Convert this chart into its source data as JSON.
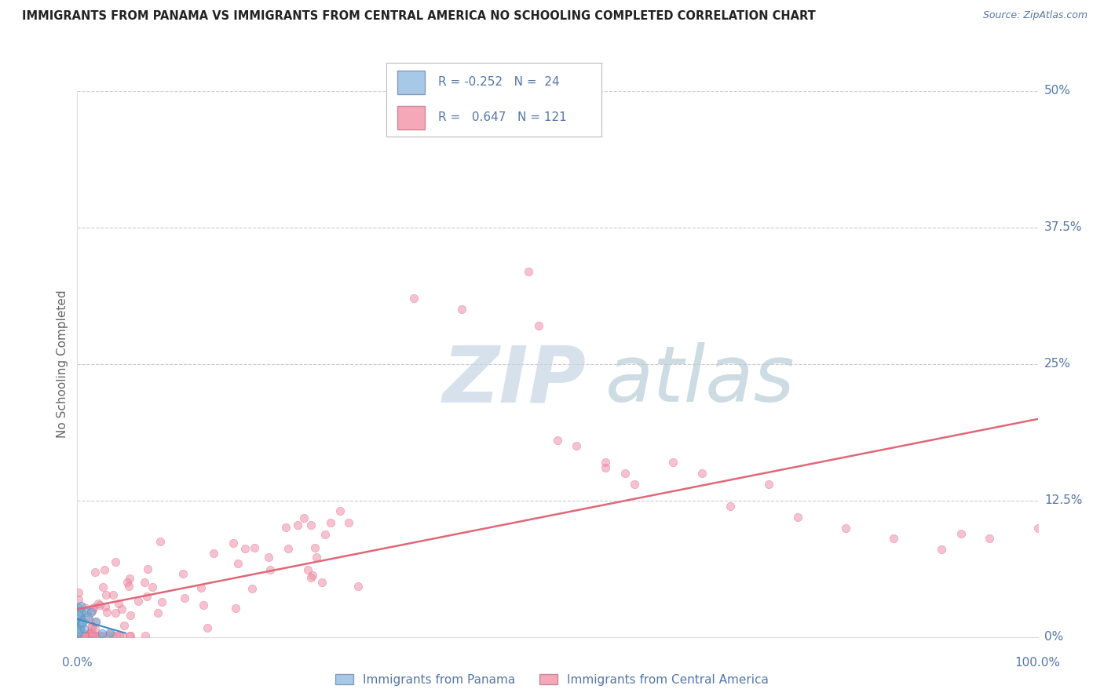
{
  "title": "IMMIGRANTS FROM PANAMA VS IMMIGRANTS FROM CENTRAL AMERICA NO SCHOOLING COMPLETED CORRELATION CHART",
  "source": "Source: ZipAtlas.com",
  "ylabel": "No Schooling Completed",
  "watermark_zip": "ZIP",
  "watermark_atlas": "atlas",
  "legend_entries": [
    {
      "label": "Immigrants from Panama",
      "R": "-0.252",
      "N": "24",
      "color": "#a8c8e8"
    },
    {
      "label": "Immigrants from Central America",
      "R": "0.647",
      "N": "121",
      "color": "#f4a8b8"
    }
  ],
  "xlim": [
    0.0,
    1.0
  ],
  "ylim": [
    0.0,
    0.5
  ],
  "yticks": [
    0.0,
    0.125,
    0.25,
    0.375,
    0.5
  ],
  "ytick_labels": [
    "0%",
    "12.5%",
    "25%",
    "37.5%",
    "50%"
  ],
  "xtick_left_label": "0.0%",
  "xtick_right_label": "100.0%",
  "title_color": "#222222",
  "axis_color": "#5577aa",
  "grid_color": "#cccccc",
  "watermark_zip_color": "#c8d0e0",
  "watermark_atlas_color": "#b8ccd8",
  "background_color": "#ffffff",
  "panama_dot_color": "#7ab0d8",
  "panama_dot_edge_color": "#5590c0",
  "central_dot_color": "#f090a8",
  "central_dot_edge_color": "#e06888",
  "panama_line_color": "#4488bb",
  "central_line_color": "#e06878",
  "dot_size": 55,
  "central_trend_x0": 0.0,
  "central_trend_y0": 0.005,
  "central_trend_x1": 1.0,
  "central_trend_y1": 0.25,
  "panama_trend_x0": 0.0,
  "panama_trend_y0": 0.018,
  "panama_trend_x1": 0.05,
  "panama_trend_y1": 0.005
}
